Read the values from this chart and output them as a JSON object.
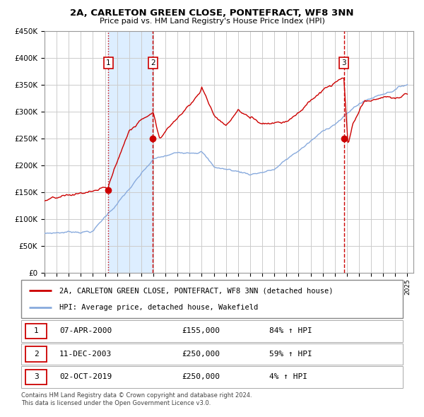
{
  "title": "2A, CARLETON GREEN CLOSE, PONTEFRACT, WF8 3NN",
  "subtitle": "Price paid vs. HM Land Registry's House Price Index (HPI)",
  "background_color": "#ffffff",
  "plot_bg_color": "#ffffff",
  "grid_color": "#cccccc",
  "sale_line_color": "#cc0000",
  "hpi_line_color": "#88aadd",
  "shade_color": "#ddeeff",
  "transactions": [
    {
      "num": 1,
      "date_dec": 2000.27,
      "price": 155000,
      "linestyle": "dotted"
    },
    {
      "num": 2,
      "date_dec": 2003.95,
      "price": 250000,
      "linestyle": "dashed"
    },
    {
      "num": 3,
      "date_dec": 2019.75,
      "price": 250000,
      "linestyle": "dashed"
    }
  ],
  "transaction_labels": [
    {
      "num": 1,
      "date": "07-APR-2000",
      "price": "£155,000",
      "pct": "84% ↑ HPI"
    },
    {
      "num": 2,
      "date": "11-DEC-2003",
      "price": "£250,000",
      "pct": "59% ↑ HPI"
    },
    {
      "num": 3,
      "date": "02-OCT-2019",
      "price": "£250,000",
      "pct": "4% ↑ HPI"
    }
  ],
  "legend_line1": "2A, CARLETON GREEN CLOSE, PONTEFRACT, WF8 3NN (detached house)",
  "legend_line2": "HPI: Average price, detached house, Wakefield",
  "footer1": "Contains HM Land Registry data © Crown copyright and database right 2024.",
  "footer2": "This data is licensed under the Open Government Licence v3.0.",
  "ylim": [
    0,
    450000
  ],
  "xlim_start": 1995,
  "xlim_end": 2025.5,
  "yticks": [
    0,
    50000,
    100000,
    150000,
    200000,
    250000,
    300000,
    350000,
    400000,
    450000
  ]
}
